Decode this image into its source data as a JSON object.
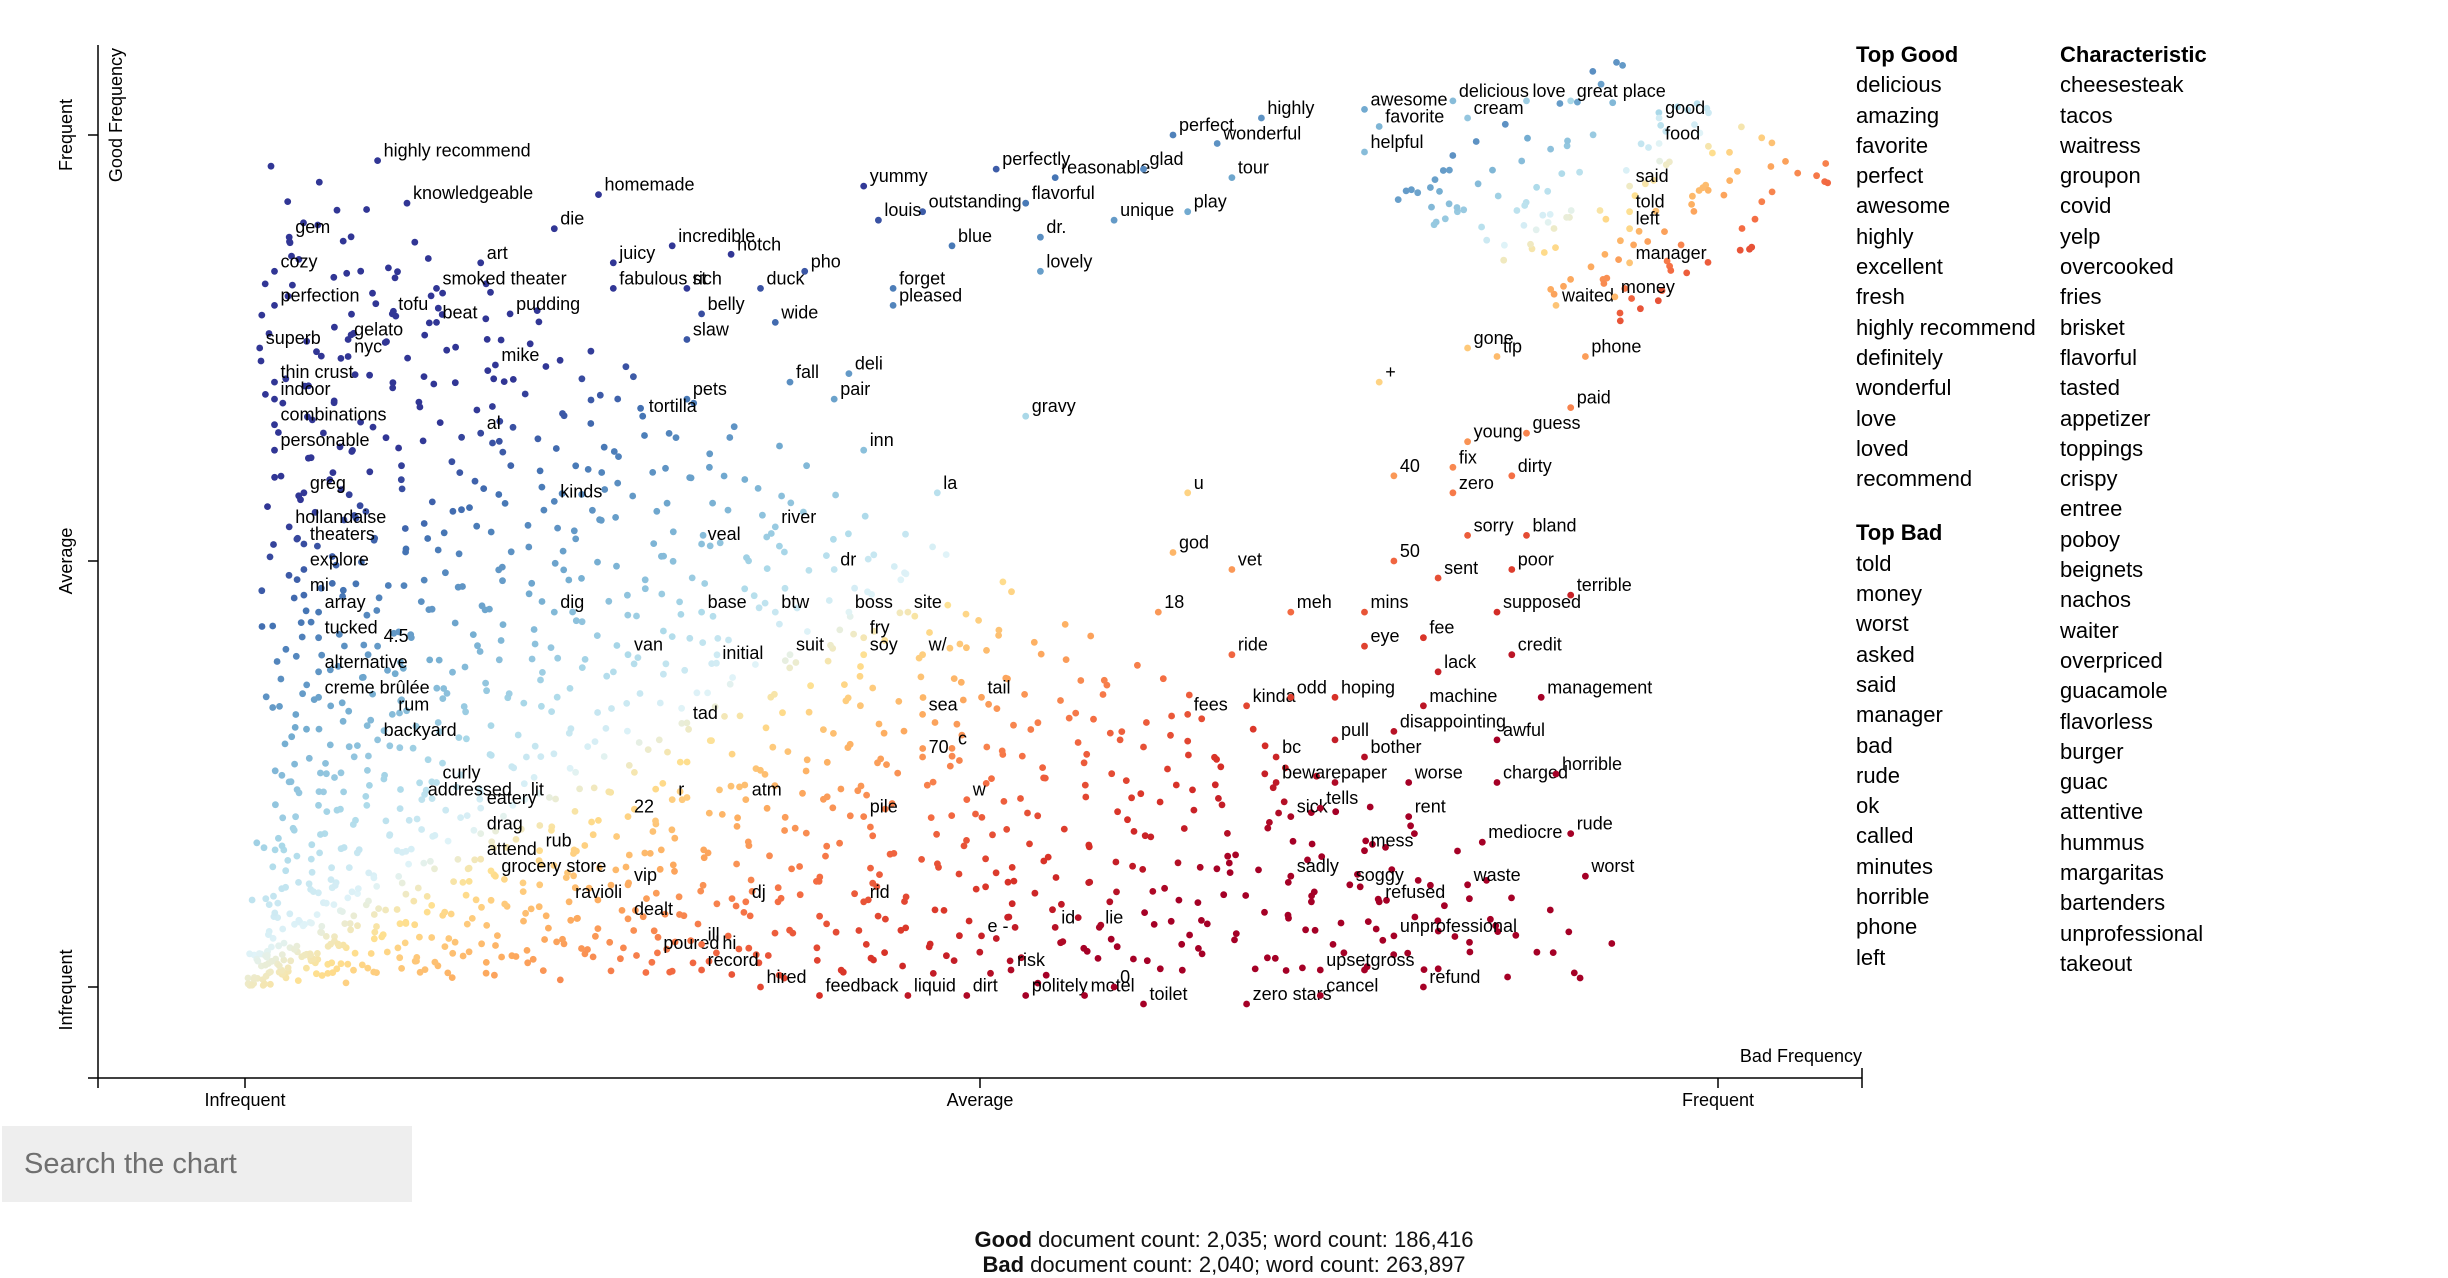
{
  "chart_data": {
    "type": "scatter",
    "title": "",
    "xlabel": "Bad Frequency",
    "ylabel": "Good Frequency",
    "xlim": [
      0,
      1
    ],
    "ylim": [
      0,
      1
    ],
    "grid": false,
    "x_ticks": [
      "Infrequent",
      "Average",
      "Frequent"
    ],
    "y_ticks": [
      "Infrequent",
      "Average",
      "Frequent"
    ],
    "color_scale": "RdYlBu (red = characteristic of Bad, blue = characteristic of Good)",
    "labeled_terms": [
      {
        "t": "highly recommend",
        "x": 0.09,
        "y": 0.97
      },
      {
        "t": "knowledgeable",
        "x": 0.11,
        "y": 0.92
      },
      {
        "t": "homemade",
        "x": 0.24,
        "y": 0.93
      },
      {
        "t": "gem",
        "x": 0.03,
        "y": 0.88
      },
      {
        "t": "die",
        "x": 0.21,
        "y": 0.89
      },
      {
        "t": "incredible",
        "x": 0.29,
        "y": 0.87
      },
      {
        "t": "art",
        "x": 0.16,
        "y": 0.85
      },
      {
        "t": "juicy",
        "x": 0.25,
        "y": 0.85
      },
      {
        "t": "notch",
        "x": 0.33,
        "y": 0.86
      },
      {
        "t": "cozy",
        "x": 0.02,
        "y": 0.84
      },
      {
        "t": "pho",
        "x": 0.38,
        "y": 0.84
      },
      {
        "t": "smoked theater",
        "x": 0.13,
        "y": 0.82
      },
      {
        "t": "fabulous st",
        "x": 0.25,
        "y": 0.82
      },
      {
        "t": "rich",
        "x": 0.3,
        "y": 0.82
      },
      {
        "t": "duck",
        "x": 0.35,
        "y": 0.82
      },
      {
        "t": "perfection",
        "x": 0.02,
        "y": 0.8
      },
      {
        "t": "tofu",
        "x": 0.1,
        "y": 0.79
      },
      {
        "t": "beat",
        "x": 0.13,
        "y": 0.78
      },
      {
        "t": "pudding",
        "x": 0.18,
        "y": 0.79
      },
      {
        "t": "belly",
        "x": 0.31,
        "y": 0.79
      },
      {
        "t": "wide",
        "x": 0.36,
        "y": 0.78
      },
      {
        "t": "superb",
        "x": 0.01,
        "y": 0.75
      },
      {
        "t": "gelato",
        "x": 0.07,
        "y": 0.76
      },
      {
        "t": "slaw",
        "x": 0.3,
        "y": 0.76
      },
      {
        "t": "nyc",
        "x": 0.07,
        "y": 0.74
      },
      {
        "t": "mike",
        "x": 0.17,
        "y": 0.73
      },
      {
        "t": "thin crust",
        "x": 0.02,
        "y": 0.71
      },
      {
        "t": "fall",
        "x": 0.37,
        "y": 0.71
      },
      {
        "t": "deli",
        "x": 0.41,
        "y": 0.72
      },
      {
        "t": "pets",
        "x": 0.3,
        "y": 0.69
      },
      {
        "t": "pair",
        "x": 0.4,
        "y": 0.69
      },
      {
        "t": "indoor",
        "x": 0.02,
        "y": 0.69
      },
      {
        "t": "tortilla",
        "x": 0.27,
        "y": 0.67
      },
      {
        "t": "al",
        "x": 0.16,
        "y": 0.65
      },
      {
        "t": "combinations",
        "x": 0.02,
        "y": 0.66
      },
      {
        "t": "inn",
        "x": 0.42,
        "y": 0.63
      },
      {
        "t": "personable",
        "x": 0.02,
        "y": 0.63
      },
      {
        "t": "greg",
        "x": 0.04,
        "y": 0.58
      },
      {
        "t": "kinds",
        "x": 0.21,
        "y": 0.57
      },
      {
        "t": "river",
        "x": 0.36,
        "y": 0.54
      },
      {
        "t": "veal",
        "x": 0.31,
        "y": 0.52
      },
      {
        "t": "hollandaise",
        "x": 0.03,
        "y": 0.54
      },
      {
        "t": "theaters",
        "x": 0.04,
        "y": 0.52
      },
      {
        "t": "explore",
        "x": 0.04,
        "y": 0.49
      },
      {
        "t": "dr",
        "x": 0.4,
        "y": 0.49
      },
      {
        "t": "mi",
        "x": 0.04,
        "y": 0.46
      },
      {
        "t": "array",
        "x": 0.05,
        "y": 0.44
      },
      {
        "t": "dig",
        "x": 0.21,
        "y": 0.44
      },
      {
        "t": "base",
        "x": 0.31,
        "y": 0.44
      },
      {
        "t": "btw",
        "x": 0.36,
        "y": 0.44
      },
      {
        "t": "boss",
        "x": 0.41,
        "y": 0.44
      },
      {
        "t": "site",
        "x": 0.45,
        "y": 0.44
      },
      {
        "t": "tucked",
        "x": 0.05,
        "y": 0.41
      },
      {
        "t": "fry",
        "x": 0.42,
        "y": 0.41
      },
      {
        "t": "4.5",
        "x": 0.09,
        "y": 0.4
      },
      {
        "t": "van",
        "x": 0.26,
        "y": 0.39
      },
      {
        "t": "initial",
        "x": 0.32,
        "y": 0.38
      },
      {
        "t": "suit",
        "x": 0.37,
        "y": 0.39
      },
      {
        "t": "soy",
        "x": 0.42,
        "y": 0.39
      },
      {
        "t": "w/",
        "x": 0.46,
        "y": 0.39
      },
      {
        "t": "alternative",
        "x": 0.05,
        "y": 0.37
      },
      {
        "t": "creme brûlée",
        "x": 0.05,
        "y": 0.34
      },
      {
        "t": "tail",
        "x": 0.5,
        "y": 0.34
      },
      {
        "t": "sea",
        "x": 0.46,
        "y": 0.32
      },
      {
        "t": "rum",
        "x": 0.1,
        "y": 0.32
      },
      {
        "t": "tad",
        "x": 0.3,
        "y": 0.31
      },
      {
        "t": "backyard",
        "x": 0.09,
        "y": 0.29
      },
      {
        "t": "c",
        "x": 0.48,
        "y": 0.28
      },
      {
        "t": "70",
        "x": 0.46,
        "y": 0.27
      },
      {
        "t": "curly",
        "x": 0.13,
        "y": 0.24
      },
      {
        "t": "atm",
        "x": 0.34,
        "y": 0.22
      },
      {
        "t": "w",
        "x": 0.49,
        "y": 0.22
      },
      {
        "t": "lit",
        "x": 0.19,
        "y": 0.22
      },
      {
        "t": "eatery",
        "x": 0.16,
        "y": 0.21
      },
      {
        "t": "r",
        "x": 0.29,
        "y": 0.22
      },
      {
        "t": "addressed",
        "x": 0.12,
        "y": 0.22
      },
      {
        "t": "22",
        "x": 0.26,
        "y": 0.2
      },
      {
        "t": "pile",
        "x": 0.42,
        "y": 0.2
      },
      {
        "t": "drag",
        "x": 0.16,
        "y": 0.18
      },
      {
        "t": "rub",
        "x": 0.2,
        "y": 0.16
      },
      {
        "t": "attend",
        "x": 0.16,
        "y": 0.15
      },
      {
        "t": "grocery store",
        "x": 0.17,
        "y": 0.13
      },
      {
        "t": "vip",
        "x": 0.26,
        "y": 0.12
      },
      {
        "t": "dj",
        "x": 0.34,
        "y": 0.1
      },
      {
        "t": "rid",
        "x": 0.42,
        "y": 0.1
      },
      {
        "t": "ravioli",
        "x": 0.22,
        "y": 0.1
      },
      {
        "t": "dealt",
        "x": 0.26,
        "y": 0.08
      },
      {
        "t": "e -",
        "x": 0.5,
        "y": 0.06
      },
      {
        "t": "id",
        "x": 0.55,
        "y": 0.07
      },
      {
        "t": "lie",
        "x": 0.58,
        "y": 0.07
      },
      {
        "t": "poured",
        "x": 0.28,
        "y": 0.04
      },
      {
        "t": "ill",
        "x": 0.31,
        "y": 0.05
      },
      {
        "t": "hi",
        "x": 0.32,
        "y": 0.04
      },
      {
        "t": "record",
        "x": 0.31,
        "y": 0.02
      },
      {
        "t": "risk",
        "x": 0.52,
        "y": 0.02
      },
      {
        "t": "hired",
        "x": 0.35,
        "y": 0.0
      },
      {
        "t": "feedback",
        "x": 0.39,
        "y": -0.01
      },
      {
        "t": "liquid",
        "x": 0.45,
        "y": -0.01
      },
      {
        "t": "dirt",
        "x": 0.49,
        "y": -0.01
      },
      {
        "t": "politely",
        "x": 0.53,
        "y": -0.01
      },
      {
        "t": "motel",
        "x": 0.57,
        "y": -0.01
      },
      {
        "t": "0",
        "x": 0.59,
        "y": 0.0
      },
      {
        "t": "toilet",
        "x": 0.61,
        "y": -0.02
      },
      {
        "t": "zero stars",
        "x": 0.68,
        "y": -0.02
      },
      {
        "t": "cancel",
        "x": 0.73,
        "y": -0.01
      },
      {
        "t": "upset",
        "x": 0.73,
        "y": 0.02
      },
      {
        "t": "gross",
        "x": 0.76,
        "y": 0.02
      },
      {
        "t": "refund",
        "x": 0.8,
        "y": 0.0
      },
      {
        "t": "unprofessional",
        "x": 0.78,
        "y": 0.06
      },
      {
        "t": "sadly",
        "x": 0.71,
        "y": 0.13
      },
      {
        "t": "soggy",
        "x": 0.75,
        "y": 0.12
      },
      {
        "t": "refused",
        "x": 0.77,
        "y": 0.1
      },
      {
        "t": "waste",
        "x": 0.83,
        "y": 0.12
      },
      {
        "t": "worst",
        "x": 0.91,
        "y": 0.13
      },
      {
        "t": "mess",
        "x": 0.76,
        "y": 0.16
      },
      {
        "t": "sick",
        "x": 0.71,
        "y": 0.2
      },
      {
        "t": "tells",
        "x": 0.73,
        "y": 0.21
      },
      {
        "t": "rent",
        "x": 0.79,
        "y": 0.2
      },
      {
        "t": "mediocre",
        "x": 0.84,
        "y": 0.17
      },
      {
        "t": "rude",
        "x": 0.9,
        "y": 0.18
      },
      {
        "t": "beware",
        "x": 0.7,
        "y": 0.24
      },
      {
        "t": "paper",
        "x": 0.74,
        "y": 0.24
      },
      {
        "t": "worse",
        "x": 0.79,
        "y": 0.24
      },
      {
        "t": "charged",
        "x": 0.85,
        "y": 0.24
      },
      {
        "t": "horrible",
        "x": 0.89,
        "y": 0.25
      },
      {
        "t": "bc",
        "x": 0.7,
        "y": 0.27
      },
      {
        "t": "pull",
        "x": 0.74,
        "y": 0.29
      },
      {
        "t": "bother",
        "x": 0.76,
        "y": 0.27
      },
      {
        "t": "disappointing",
        "x": 0.78,
        "y": 0.3
      },
      {
        "t": "awful",
        "x": 0.85,
        "y": 0.29
      },
      {
        "t": "fees",
        "x": 0.64,
        "y": 0.32
      },
      {
        "t": "kinda",
        "x": 0.68,
        "y": 0.33
      },
      {
        "t": "odd",
        "x": 0.71,
        "y": 0.34
      },
      {
        "t": "hoping",
        "x": 0.74,
        "y": 0.34
      },
      {
        "t": "machine",
        "x": 0.8,
        "y": 0.33
      },
      {
        "t": "management",
        "x": 0.88,
        "y": 0.34
      },
      {
        "t": "lack",
        "x": 0.81,
        "y": 0.37
      },
      {
        "t": "ride",
        "x": 0.67,
        "y": 0.39
      },
      {
        "t": "eye",
        "x": 0.76,
        "y": 0.4
      },
      {
        "t": "fee",
        "x": 0.8,
        "y": 0.41
      },
      {
        "t": "credit",
        "x": 0.86,
        "y": 0.39
      },
      {
        "t": "18",
        "x": 0.62,
        "y": 0.44
      },
      {
        "t": "meh",
        "x": 0.71,
        "y": 0.44
      },
      {
        "t": "mins",
        "x": 0.76,
        "y": 0.44
      },
      {
        "t": "supposed",
        "x": 0.85,
        "y": 0.44
      },
      {
        "t": "terrible",
        "x": 0.9,
        "y": 0.46
      },
      {
        "t": "vet",
        "x": 0.67,
        "y": 0.49
      },
      {
        "t": "sent",
        "x": 0.81,
        "y": 0.48
      },
      {
        "t": "poor",
        "x": 0.86,
        "y": 0.49
      },
      {
        "t": "god",
        "x": 0.63,
        "y": 0.51
      },
      {
        "t": "50",
        "x": 0.78,
        "y": 0.5
      },
      {
        "t": "sorry",
        "x": 0.83,
        "y": 0.53
      },
      {
        "t": "bland",
        "x": 0.87,
        "y": 0.53
      },
      {
        "t": "zero",
        "x": 0.82,
        "y": 0.58
      },
      {
        "t": "u",
        "x": 0.64,
        "y": 0.58
      },
      {
        "t": "40",
        "x": 0.78,
        "y": 0.6
      },
      {
        "t": "fix",
        "x": 0.82,
        "y": 0.61
      },
      {
        "t": "dirty",
        "x": 0.86,
        "y": 0.6
      },
      {
        "t": "young",
        "x": 0.83,
        "y": 0.64
      },
      {
        "t": "guess",
        "x": 0.87,
        "y": 0.65
      },
      {
        "t": "paid",
        "x": 0.9,
        "y": 0.68
      },
      {
        "t": "phone",
        "x": 0.91,
        "y": 0.74
      },
      {
        "t": "gone",
        "x": 0.83,
        "y": 0.75
      },
      {
        "t": "tip",
        "x": 0.85,
        "y": 0.74
      },
      {
        "t": "waited",
        "x": 0.89,
        "y": 0.8
      },
      {
        "t": "money",
        "x": 0.93,
        "y": 0.81
      },
      {
        "t": "manager",
        "x": 0.94,
        "y": 0.85
      },
      {
        "t": "left",
        "x": 0.94,
        "y": 0.89
      },
      {
        "t": "told",
        "x": 0.94,
        "y": 0.91
      },
      {
        "t": "said",
        "x": 0.94,
        "y": 0.94
      },
      {
        "t": "food",
        "x": 0.96,
        "y": 0.99
      },
      {
        "t": "good",
        "x": 0.96,
        "y": 1.02
      },
      {
        "t": "great place",
        "x": 0.9,
        "y": 1.04
      },
      {
        "t": "love",
        "x": 0.87,
        "y": 1.04
      },
      {
        "t": "delicious",
        "x": 0.82,
        "y": 1.04
      },
      {
        "t": "cream",
        "x": 0.83,
        "y": 1.02
      },
      {
        "t": "awesome",
        "x": 0.76,
        "y": 1.03
      },
      {
        "t": "favorite",
        "x": 0.77,
        "y": 1.01
      },
      {
        "t": "helpful",
        "x": 0.76,
        "y": 0.98
      },
      {
        "t": "highly",
        "x": 0.69,
        "y": 1.02
      },
      {
        "t": "perfect",
        "x": 0.63,
        "y": 1.0
      },
      {
        "t": "wonderful",
        "x": 0.66,
        "y": 0.99
      },
      {
        "t": "perfectly",
        "x": 0.51,
        "y": 0.96
      },
      {
        "t": "reasonable",
        "x": 0.55,
        "y": 0.95
      },
      {
        "t": "glad",
        "x": 0.61,
        "y": 0.96
      },
      {
        "t": "tour",
        "x": 0.67,
        "y": 0.95
      },
      {
        "t": "yummy",
        "x": 0.42,
        "y": 0.94
      },
      {
        "t": "outstanding",
        "x": 0.46,
        "y": 0.91
      },
      {
        "t": "flavorful",
        "x": 0.53,
        "y": 0.92
      },
      {
        "t": "unique",
        "x": 0.59,
        "y": 0.9
      },
      {
        "t": "play",
        "x": 0.64,
        "y": 0.91
      },
      {
        "t": "louis",
        "x": 0.43,
        "y": 0.9
      },
      {
        "t": "dr.",
        "x": 0.54,
        "y": 0.88
      },
      {
        "t": "blue",
        "x": 0.48,
        "y": 0.87
      },
      {
        "t": "lovely",
        "x": 0.54,
        "y": 0.84
      },
      {
        "t": "forget",
        "x": 0.44,
        "y": 0.82
      },
      {
        "t": "pleased",
        "x": 0.44,
        "y": 0.8
      },
      {
        "t": "gravy",
        "x": 0.53,
        "y": 0.67
      },
      {
        "t": "la",
        "x": 0.47,
        "y": 0.58
      },
      {
        "t": "+",
        "x": 0.77,
        "y": 0.71
      }
    ]
  },
  "sidebar": {
    "good_header": "Top Good",
    "good_terms": [
      "delicious",
      "amazing",
      "favorite",
      "perfect",
      "awesome",
      "highly",
      "excellent",
      "fresh",
      "highly recommend",
      "definitely",
      "wonderful",
      "love",
      "loved",
      "recommend"
    ],
    "bad_header": "Top Bad",
    "bad_terms": [
      "told",
      "money",
      "worst",
      "asked",
      "said",
      "manager",
      "bad",
      "rude",
      "ok",
      "called",
      "minutes",
      "horrible",
      "phone",
      "left"
    ],
    "char_header": "Characteristic",
    "char_terms": [
      "cheesesteak",
      "tacos",
      "waitress",
      "groupon",
      "covid",
      "yelp",
      "overcooked",
      "fries",
      "brisket",
      "flavorful",
      "tasted",
      "appetizer",
      "toppings",
      "crispy",
      "entree",
      "poboy",
      "beignets",
      "nachos",
      "waiter",
      "overpriced",
      "guacamole",
      "flavorless",
      "burger",
      "guac",
      "attentive",
      "hummus",
      "margaritas",
      "bartenders",
      "unprofessional",
      "takeout"
    ]
  },
  "search": {
    "placeholder": "Search the chart"
  },
  "stats": {
    "good_label": "Good",
    "good_rest": " document count: 2,035; word count: 186,416",
    "bad_label": "Bad",
    "bad_rest": " document count: 2,040; word count: 263,897"
  }
}
